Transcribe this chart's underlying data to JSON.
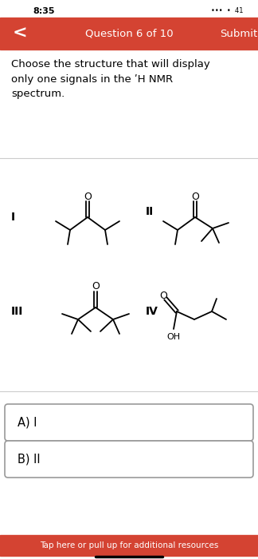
{
  "bg_color": "#ffffff",
  "status_time": "8:35",
  "nav_bg": "#d44332",
  "nav_title": "Question 6 of 10",
  "nav_submit": "Submit",
  "nav_back": "<",
  "question_text": "Choose the structure that will display\nonly one signals in the ʹH NMR\nspectrum.",
  "answer_a": "A) I",
  "answer_b": "B) II",
  "footer_text": "Tap here or pull up for additional resources",
  "footer_bg": "#d44332",
  "divider_color": "#cccccc",
  "text_color": "#000000",
  "white": "#ffffff"
}
